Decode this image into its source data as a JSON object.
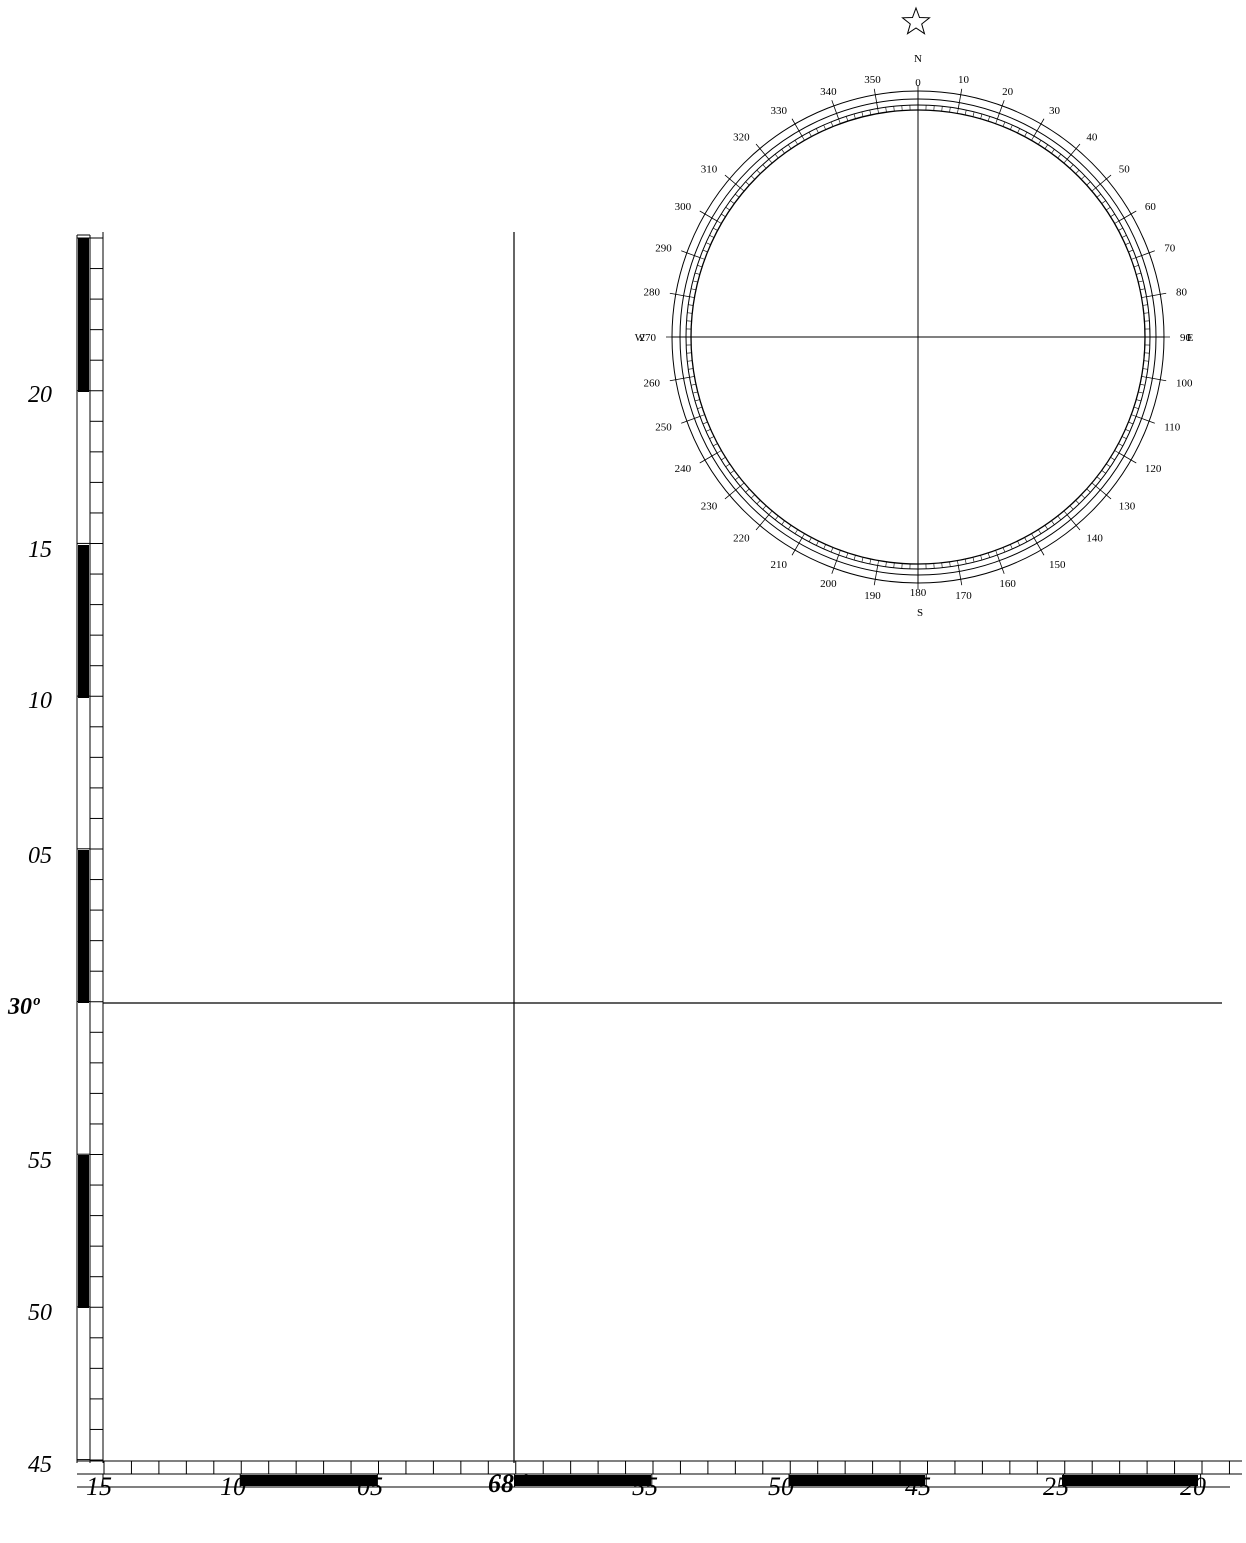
{
  "map": {
    "reference_latitude_label": "30º",
    "reference_longitude_label": "68 º",
    "latitude_labels": [
      "20",
      "15",
      "10",
      "05",
      "55",
      "50",
      "45"
    ],
    "longitude_labels": [
      "15",
      "10",
      "05",
      "55",
      "50",
      "45",
      "25",
      "20"
    ],
    "colors": {
      "ink": "#000000",
      "paper": "#ffffff"
    }
  },
  "compass": {
    "north_marker_icon": "star-outline-icon",
    "directions": {
      "north": "N",
      "east": "E",
      "south": "S",
      "west": "W"
    },
    "degree_labels": [
      "0",
      "10",
      "20",
      "30",
      "40",
      "50",
      "60",
      "70",
      "80",
      "90",
      "100",
      "110",
      "120",
      "130",
      "140",
      "150",
      "160",
      "170",
      "180",
      "190",
      "200",
      "210",
      "220",
      "230",
      "240",
      "250",
      "260",
      "270",
      "280",
      "290",
      "300",
      "310",
      "320",
      "330",
      "340",
      "350"
    ]
  }
}
